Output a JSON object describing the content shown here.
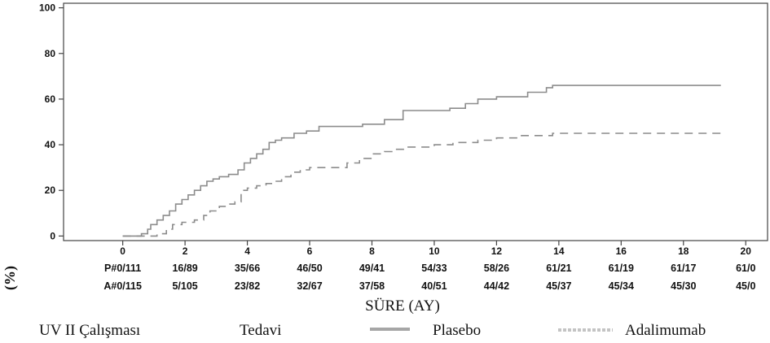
{
  "chart_data": {
    "type": "line",
    "step": true,
    "title": "",
    "xlabel": "SÜRE (AY)",
    "ylabel": "(%)",
    "xlim": [
      -1.9,
      20.7
    ],
    "ylim": [
      -2,
      102
    ],
    "x_ticks": [
      0,
      2,
      4,
      6,
      8,
      10,
      12,
      14,
      16,
      18,
      20
    ],
    "y_ticks": [
      0,
      20,
      40,
      60,
      80,
      100
    ],
    "grid": false,
    "series": [
      {
        "name": "Plasebo",
        "color": "#8c8c8c",
        "dash": "solid",
        "points": [
          [
            0,
            0
          ],
          [
            0.6,
            0
          ],
          [
            0.6,
            1
          ],
          [
            0.8,
            1
          ],
          [
            0.8,
            3
          ],
          [
            0.9,
            3
          ],
          [
            0.9,
            5
          ],
          [
            1.1,
            5
          ],
          [
            1.1,
            7
          ],
          [
            1.3,
            7
          ],
          [
            1.3,
            9
          ],
          [
            1.5,
            9
          ],
          [
            1.5,
            11
          ],
          [
            1.7,
            11
          ],
          [
            1.7,
            14
          ],
          [
            1.9,
            14
          ],
          [
            1.9,
            16
          ],
          [
            2.1,
            16
          ],
          [
            2.1,
            18
          ],
          [
            2.3,
            18
          ],
          [
            2.3,
            20
          ],
          [
            2.5,
            20
          ],
          [
            2.5,
            22
          ],
          [
            2.7,
            22
          ],
          [
            2.7,
            24
          ],
          [
            2.9,
            24
          ],
          [
            2.9,
            25
          ],
          [
            3.1,
            25
          ],
          [
            3.1,
            26
          ],
          [
            3.4,
            26
          ],
          [
            3.4,
            27
          ],
          [
            3.7,
            27
          ],
          [
            3.7,
            29
          ],
          [
            3.9,
            29
          ],
          [
            3.9,
            32
          ],
          [
            4.1,
            32
          ],
          [
            4.1,
            34
          ],
          [
            4.3,
            34
          ],
          [
            4.3,
            36
          ],
          [
            4.5,
            36
          ],
          [
            4.5,
            38
          ],
          [
            4.7,
            38
          ],
          [
            4.7,
            41
          ],
          [
            4.9,
            41
          ],
          [
            4.9,
            42
          ],
          [
            5.1,
            42
          ],
          [
            5.1,
            43
          ],
          [
            5.5,
            43
          ],
          [
            5.5,
            45
          ],
          [
            5.9,
            45
          ],
          [
            5.9,
            46
          ],
          [
            6.3,
            46
          ],
          [
            6.3,
            48
          ],
          [
            7,
            48
          ],
          [
            7,
            48
          ],
          [
            7.7,
            48
          ],
          [
            7.7,
            49
          ],
          [
            8.4,
            49
          ],
          [
            8.4,
            51
          ],
          [
            9,
            51
          ],
          [
            9,
            55
          ],
          [
            10.5,
            55
          ],
          [
            10.5,
            56
          ],
          [
            11,
            56
          ],
          [
            11,
            58
          ],
          [
            11.4,
            58
          ],
          [
            11.4,
            60
          ],
          [
            12,
            60
          ],
          [
            12,
            61
          ],
          [
            13,
            61
          ],
          [
            13,
            63
          ],
          [
            13.6,
            63
          ],
          [
            13.6,
            65
          ],
          [
            13.8,
            65
          ],
          [
            13.8,
            66
          ],
          [
            19.2,
            66
          ]
        ]
      },
      {
        "name": "Adalimumab",
        "color": "#8c8c8c",
        "dash": "dashed",
        "points": [
          [
            0,
            0
          ],
          [
            1.1,
            0
          ],
          [
            1.1,
            1
          ],
          [
            1.4,
            1
          ],
          [
            1.4,
            3
          ],
          [
            1.6,
            3
          ],
          [
            1.6,
            5
          ],
          [
            1.9,
            5
          ],
          [
            1.9,
            6
          ],
          [
            2.3,
            6
          ],
          [
            2.3,
            7
          ],
          [
            2.6,
            7
          ],
          [
            2.6,
            9
          ],
          [
            2.8,
            9
          ],
          [
            2.8,
            11
          ],
          [
            3.1,
            11
          ],
          [
            3.1,
            13
          ],
          [
            3.4,
            13
          ],
          [
            3.4,
            14
          ],
          [
            3.6,
            14
          ],
          [
            3.6,
            15
          ],
          [
            3.8,
            15
          ],
          [
            3.8,
            20
          ],
          [
            4,
            20
          ],
          [
            4,
            21
          ],
          [
            4.3,
            21
          ],
          [
            4.3,
            22
          ],
          [
            4.6,
            22
          ],
          [
            4.6,
            23
          ],
          [
            4.9,
            23
          ],
          [
            4.9,
            24
          ],
          [
            5.1,
            24
          ],
          [
            5.1,
            26
          ],
          [
            5.4,
            26
          ],
          [
            5.4,
            28
          ],
          [
            5.7,
            28
          ],
          [
            5.7,
            29
          ],
          [
            6,
            29
          ],
          [
            6,
            30
          ],
          [
            7.2,
            30
          ],
          [
            7.2,
            32
          ],
          [
            7.6,
            32
          ],
          [
            7.6,
            34
          ],
          [
            8,
            34
          ],
          [
            8,
            36
          ],
          [
            8.4,
            36
          ],
          [
            8.4,
            37
          ],
          [
            8.7,
            37
          ],
          [
            8.7,
            38
          ],
          [
            9.1,
            38
          ],
          [
            9.1,
            39
          ],
          [
            10,
            39
          ],
          [
            10,
            40
          ],
          [
            10.6,
            40
          ],
          [
            10.6,
            41
          ],
          [
            11.4,
            41
          ],
          [
            11.4,
            42
          ],
          [
            12,
            42
          ],
          [
            12,
            43
          ],
          [
            12.8,
            43
          ],
          [
            12.8,
            44
          ],
          [
            13.8,
            44
          ],
          [
            13.8,
            45
          ],
          [
            19.2,
            45
          ]
        ]
      }
    ],
    "risk_table": {
      "rows": [
        {
          "label": "P#0/111",
          "values": [
            "16/89",
            "35/66",
            "46/50",
            "49/41",
            "54/33",
            "58/26",
            "61/21",
            "61/19",
            "61/17",
            "61/0"
          ]
        },
        {
          "label": "A#0/115",
          "values": [
            "5/105",
            "23/82",
            "32/67",
            "37/58",
            "40/51",
            "44/42",
            "45/37",
            "45/34",
            "45/30",
            "45/0"
          ]
        }
      ]
    },
    "legend": {
      "placement": "bottom",
      "study": "UV II Çalışması",
      "treatment_label": "Tedavi",
      "entries": [
        "Plasebo",
        "Adalimumab"
      ]
    }
  }
}
